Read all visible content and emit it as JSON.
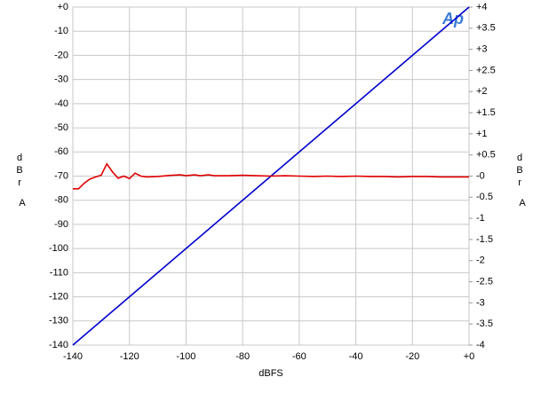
{
  "chart_data": {
    "type": "line",
    "xlabel": "dBFS",
    "ylabel": "dBr",
    "ylabel_unit": "A",
    "y2label": "dBr",
    "y2label_unit": "A",
    "logo": "Ap",
    "xlim": [
      -140,
      0
    ],
    "xticks": [
      -140,
      -120,
      -100,
      -80,
      -60,
      -40,
      -20,
      {
        "value": 0,
        "label": "+0"
      }
    ],
    "ylim": [
      -140,
      0
    ],
    "yticks": [
      {
        "value": 0,
        "label": "+0"
      },
      -10,
      -20,
      -30,
      -40,
      -50,
      -60,
      -70,
      -80,
      -90,
      -100,
      -110,
      -120,
      -130,
      -140
    ],
    "y2lim": [
      -4,
      4
    ],
    "y2ticks": [
      {
        "value": 4,
        "label": "+4"
      },
      {
        "value": 3.5,
        "label": "+3.5"
      },
      {
        "value": 3,
        "label": "+3"
      },
      {
        "value": 2.5,
        "label": "+2.5"
      },
      {
        "value": 2,
        "label": "+2"
      },
      {
        "value": 1.5,
        "label": "+1.5"
      },
      {
        "value": 1,
        "label": "+1"
      },
      {
        "value": 0.5,
        "label": "+0.5"
      },
      {
        "value": 0,
        "label": "-0"
      },
      -0.5,
      -1,
      -1.5,
      -2,
      -2.5,
      -3,
      -3.5,
      -4
    ],
    "grid": true,
    "series": [
      {
        "color": "#0000cc",
        "x": [
          -140,
          0
        ],
        "values": [
          -140,
          0
        ]
      },
      {
        "color": "#e00000",
        "axis": "y2",
        "x": [
          -140,
          -138,
          -136,
          -134,
          -132,
          -130,
          -128,
          -126,
          -124,
          -122,
          -120,
          -118,
          -116,
          -114,
          -110,
          -105,
          -102,
          -100,
          -97,
          -95,
          -92,
          -90,
          -85,
          -80,
          -75,
          -70,
          -65,
          -60,
          -55,
          -50,
          -45,
          -40,
          -35,
          -30,
          -25,
          -20,
          -15,
          -10,
          -5,
          0
        ],
        "values": [
          -0.3,
          -0.3,
          -0.17,
          -0.07,
          -0.02,
          0.02,
          0.29,
          0.1,
          -0.05,
          0.0,
          -0.06,
          0.07,
          0.0,
          -0.02,
          -0.01,
          0.02,
          0.03,
          0.01,
          0.03,
          0.01,
          0.03,
          0.01,
          0.01,
          0.02,
          0.01,
          0.0,
          0.01,
          0.0,
          -0.01,
          0.0,
          -0.01,
          0.0,
          -0.01,
          -0.01,
          -0.02,
          -0.01,
          -0.01,
          -0.02,
          -0.02,
          -0.02
        ]
      }
    ]
  }
}
